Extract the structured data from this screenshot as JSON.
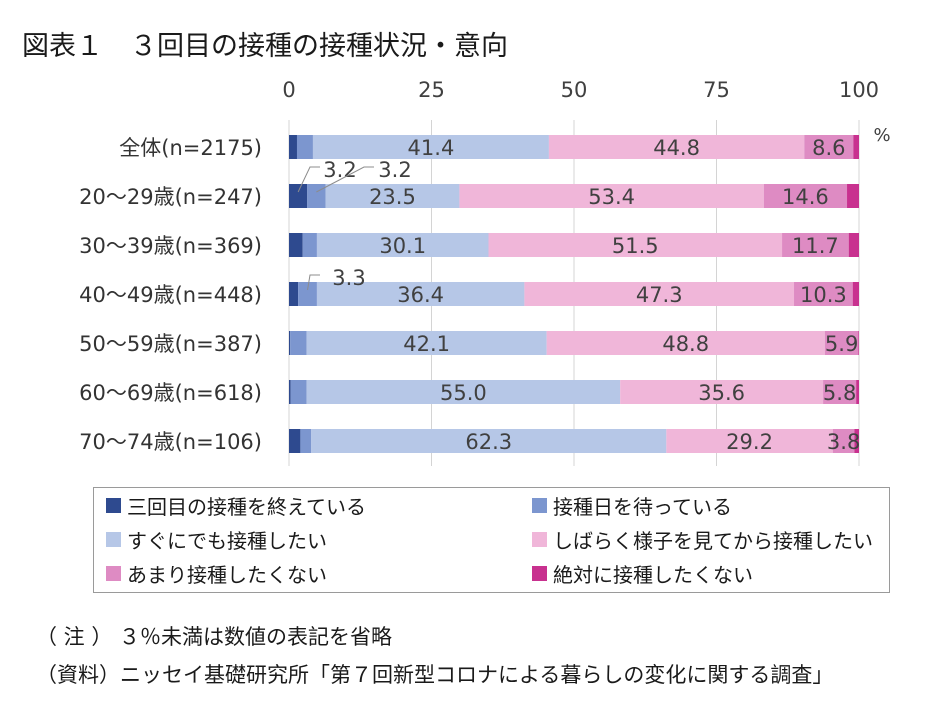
{
  "title": "図表１　３回目の接種の接種状況・意向",
  "notes": {
    "note": "（ 注 ） ３％未満は数値の表記を省略",
    "source": "（資料）ニッセイ基礎研究所「第７回新型コロナによる暮らしの変化に関する調査」"
  },
  "chart_data": {
    "type": "bar",
    "orientation": "horizontal",
    "stacked": "percent",
    "x_ticks": [
      "0",
      "25",
      "50",
      "75",
      "100"
    ],
    "xlim": [
      0,
      100
    ],
    "x_unit": "%",
    "categories": [
      "全体(n=2175)",
      "20～29歳(n=247)",
      "30～39歳(n=369)",
      "40～49歳(n=448)",
      "50～59歳(n=387)",
      "60～69歳(n=618)",
      "70～74歳(n=106)"
    ],
    "series": [
      {
        "name": "三回目の接種を終えている",
        "color": "#2e4a8f",
        "values": [
          1.4,
          3.2,
          2.4,
          1.6,
          0.2,
          0.3,
          2.0
        ],
        "labels": [
          "",
          "3.2",
          "",
          "",
          "",
          "",
          ""
        ]
      },
      {
        "name": "接種日を待っている",
        "color": "#7c96cf",
        "values": [
          2.8,
          3.2,
          2.5,
          3.3,
          2.9,
          2.8,
          1.9
        ],
        "labels": [
          "",
          "3.2",
          "",
          "3.3",
          "",
          "",
          ""
        ]
      },
      {
        "name": "すぐにでも接種したい",
        "color": "#b6c7e7",
        "values": [
          41.4,
          23.5,
          30.1,
          36.4,
          42.1,
          55.0,
          62.3
        ],
        "labels": [
          "41.4",
          "23.5",
          "30.1",
          "36.4",
          "42.1",
          "55.0",
          "62.3"
        ]
      },
      {
        "name": "しばらく様子を見てから接種したい",
        "color": "#f0b6d9",
        "values": [
          44.8,
          53.4,
          51.5,
          47.3,
          48.8,
          35.6,
          29.2
        ],
        "labels": [
          "44.8",
          "53.4",
          "51.5",
          "47.3",
          "48.8",
          "35.6",
          "29.2"
        ]
      },
      {
        "name": "あまり接種したくない",
        "color": "#de8bc3",
        "values": [
          8.6,
          14.6,
          11.7,
          10.3,
          5.9,
          5.8,
          3.8
        ],
        "labels": [
          "8.6",
          "14.6",
          "11.7",
          "10.3",
          "5.9",
          "5.8",
          "3.8"
        ]
      },
      {
        "name": "絶対に接種したくない",
        "color": "#c8318f",
        "values": [
          1.0,
          2.1,
          1.8,
          1.1,
          0.1,
          0.5,
          0.8
        ],
        "labels": [
          "",
          "",
          "",
          "",
          "",
          "",
          ""
        ]
      }
    ],
    "gridlines": true,
    "legend_position": "bottom"
  }
}
